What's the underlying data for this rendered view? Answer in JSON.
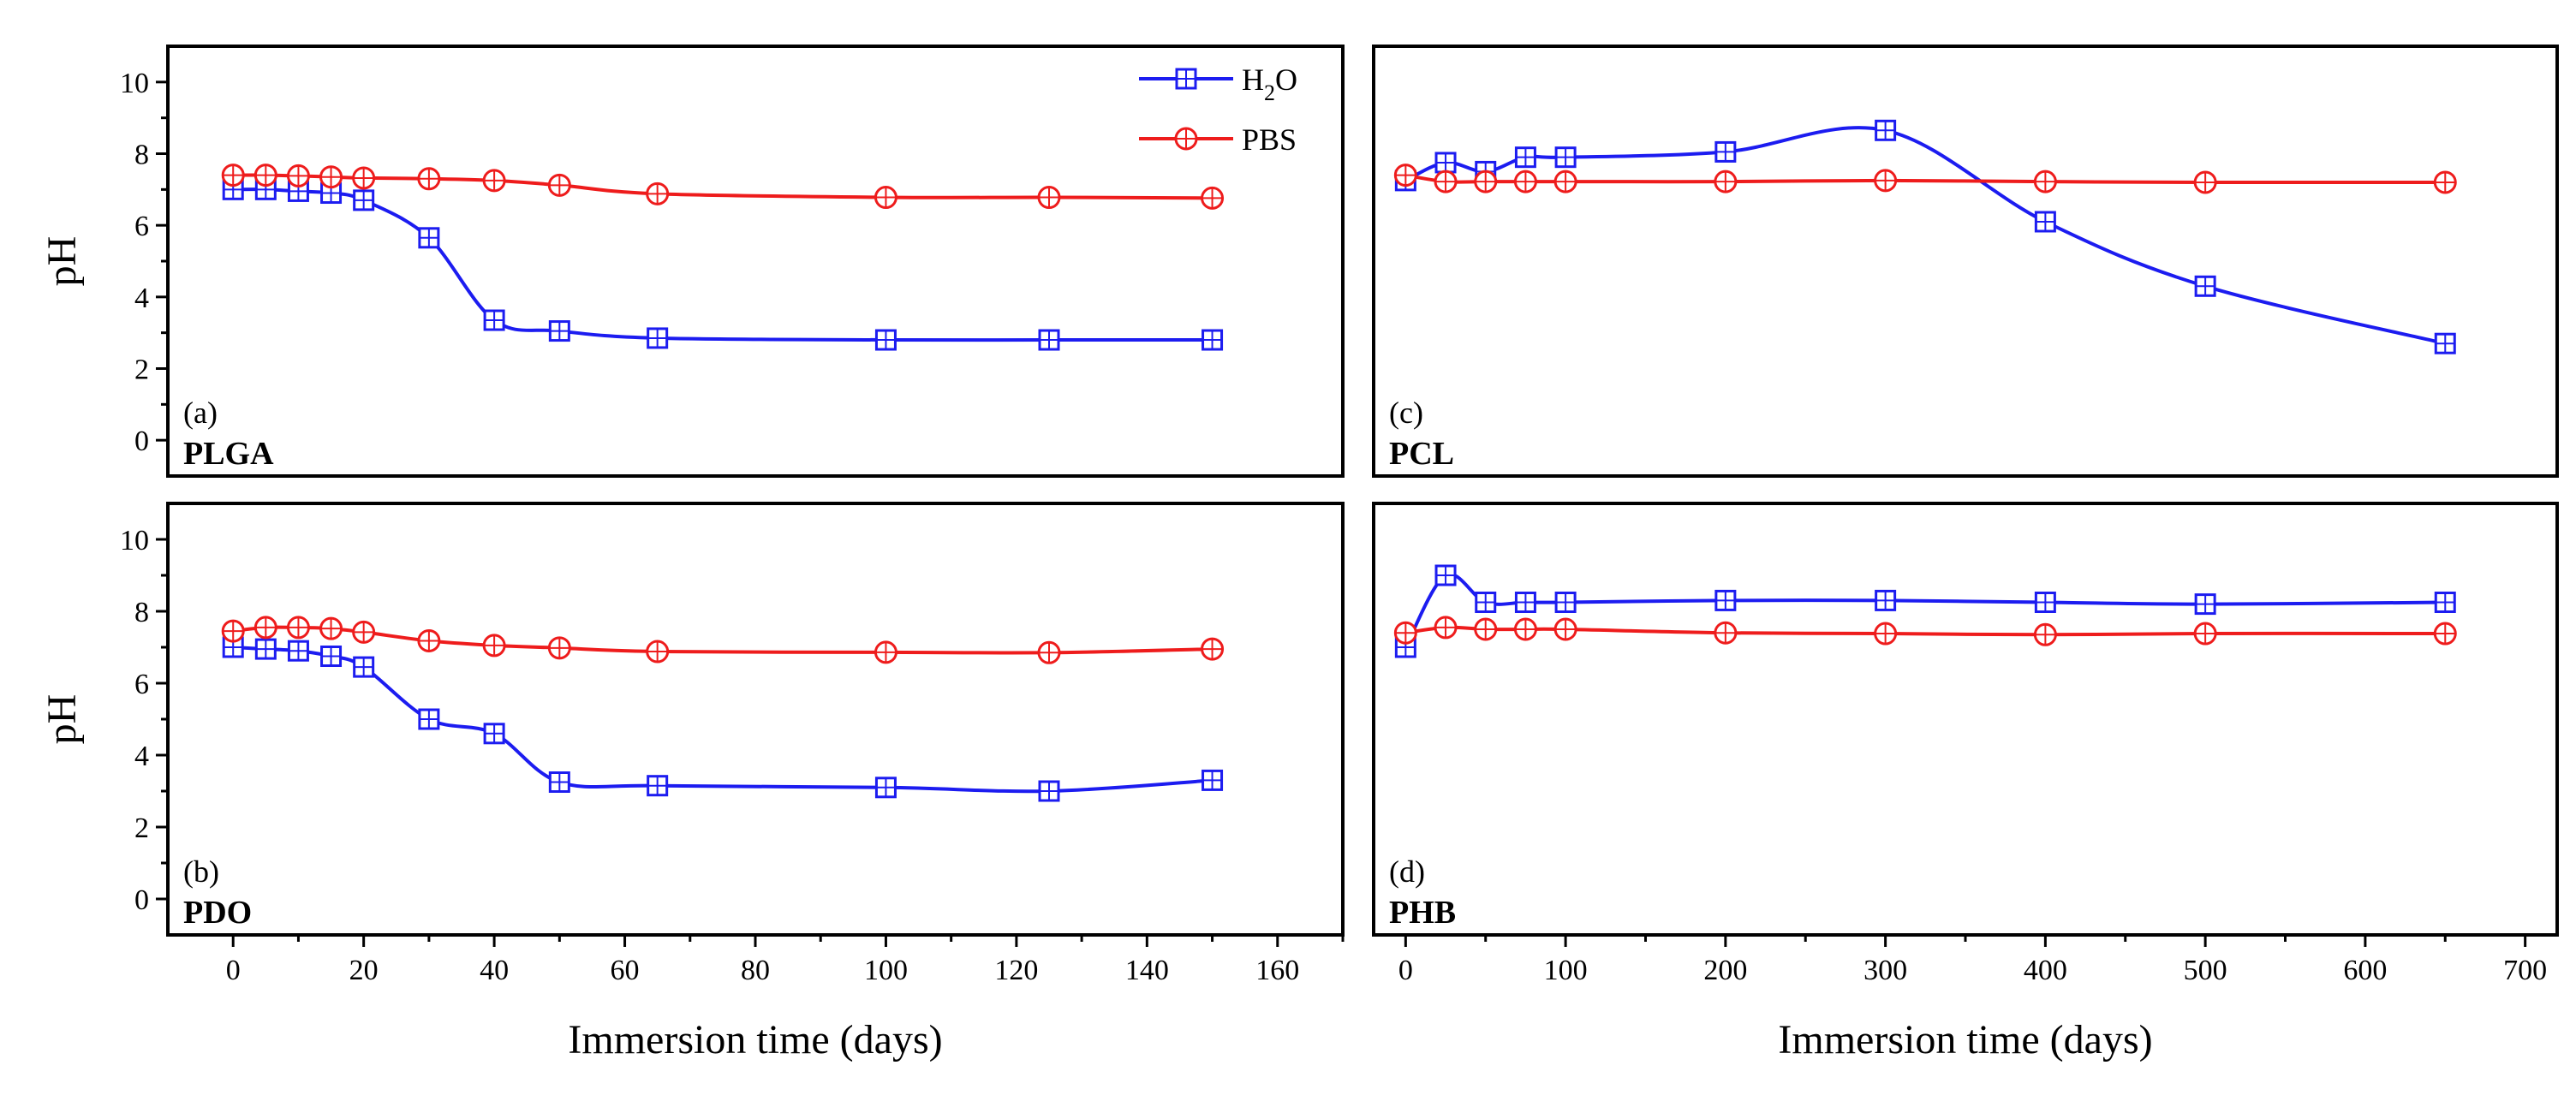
{
  "chart_data": [
    {
      "type": "line",
      "panel_label": "(a)",
      "material": "PLGA",
      "ylabel": "pH",
      "xlabel": "",
      "xlim": [
        -10,
        170
      ],
      "ylim": [
        -1,
        11
      ],
      "yticks": [
        "0",
        "2",
        "4",
        "6",
        "8",
        "10"
      ],
      "xticks": [],
      "legend": [
        {
          "name": "H2O",
          "main": "H",
          "sub": "2",
          "tail": "O",
          "marker": "square",
          "color": "#1c1cf0"
        },
        {
          "name": "PBS",
          "main": "PBS",
          "sub": "",
          "tail": "",
          "marker": "circle",
          "color": "#ee1c1c"
        }
      ],
      "series": [
        {
          "name": "H2O",
          "color": "#1c1cf0",
          "marker": "square",
          "x": [
            0,
            5,
            10,
            15,
            20,
            30,
            40,
            50,
            65,
            100,
            125,
            150
          ],
          "y": [
            7.0,
            7.0,
            6.95,
            6.9,
            6.7,
            5.65,
            3.35,
            3.05,
            2.85,
            2.8,
            2.8,
            2.8
          ]
        },
        {
          "name": "PBS",
          "color": "#ee1c1c",
          "marker": "circle",
          "x": [
            0,
            5,
            10,
            15,
            20,
            30,
            40,
            50,
            65,
            100,
            125,
            150
          ],
          "y": [
            7.4,
            7.4,
            7.38,
            7.35,
            7.32,
            7.3,
            7.25,
            7.12,
            6.88,
            6.78,
            6.78,
            6.76
          ]
        }
      ]
    },
    {
      "type": "line",
      "panel_label": "(b)",
      "material": "PDO",
      "ylabel": "pH",
      "xlabel": "Immersion time (days)",
      "xlim": [
        -10,
        170
      ],
      "ylim": [
        -1,
        11
      ],
      "yticks": [
        "0",
        "2",
        "4",
        "6",
        "8",
        "10"
      ],
      "xticks": [
        "0",
        "20",
        "40",
        "60",
        "80",
        "100",
        "120",
        "140",
        "160"
      ],
      "series": [
        {
          "name": "H2O",
          "color": "#1c1cf0",
          "marker": "square",
          "x": [
            0,
            5,
            10,
            15,
            20,
            30,
            40,
            50,
            65,
            100,
            125,
            150
          ],
          "y": [
            7.0,
            6.95,
            6.9,
            6.75,
            6.45,
            5.0,
            4.6,
            3.25,
            3.15,
            3.1,
            3.0,
            3.3
          ]
        },
        {
          "name": "PBS",
          "color": "#ee1c1c",
          "marker": "circle",
          "x": [
            0,
            5,
            10,
            15,
            20,
            30,
            40,
            50,
            65,
            100,
            125,
            150
          ],
          "y": [
            7.45,
            7.55,
            7.55,
            7.52,
            7.42,
            7.18,
            7.05,
            6.98,
            6.88,
            6.86,
            6.85,
            6.95
          ]
        }
      ]
    },
    {
      "type": "line",
      "panel_label": "(c)",
      "material": "PCL",
      "ylabel": "",
      "xlabel": "",
      "xlim": [
        -20,
        720
      ],
      "ylim": [
        -1,
        11
      ],
      "yticks": [],
      "xticks": [],
      "series": [
        {
          "name": "H2O",
          "color": "#1c1cf0",
          "marker": "square",
          "x": [
            0,
            25,
            50,
            75,
            100,
            200,
            300,
            400,
            500,
            650
          ],
          "y": [
            7.25,
            7.75,
            7.5,
            7.9,
            7.9,
            8.05,
            8.65,
            6.1,
            4.3,
            2.7
          ]
        },
        {
          "name": "PBS",
          "color": "#ee1c1c",
          "marker": "circle",
          "x": [
            0,
            25,
            50,
            75,
            100,
            200,
            300,
            400,
            500,
            650
          ],
          "y": [
            7.4,
            7.22,
            7.22,
            7.22,
            7.22,
            7.22,
            7.25,
            7.22,
            7.2,
            7.2
          ]
        }
      ]
    },
    {
      "type": "line",
      "panel_label": "(d)",
      "material": "PHB",
      "ylabel": "",
      "xlabel": "Immersion time (days)",
      "xlim": [
        -20,
        720
      ],
      "ylim": [
        -1,
        11
      ],
      "yticks": [],
      "xticks": [
        "0",
        "100",
        "200",
        "300",
        "400",
        "500",
        "600",
        "700"
      ],
      "series": [
        {
          "name": "H2O",
          "color": "#1c1cf0",
          "marker": "square",
          "x": [
            0,
            25,
            50,
            75,
            100,
            200,
            300,
            400,
            500,
            650
          ],
          "y": [
            7.0,
            9.0,
            8.25,
            8.25,
            8.25,
            8.3,
            8.3,
            8.25,
            8.2,
            8.25
          ]
        },
        {
          "name": "PBS",
          "color": "#ee1c1c",
          "marker": "circle",
          "x": [
            0,
            25,
            50,
            75,
            100,
            200,
            300,
            400,
            500,
            650
          ],
          "y": [
            7.4,
            7.55,
            7.5,
            7.5,
            7.5,
            7.4,
            7.38,
            7.35,
            7.38,
            7.38
          ]
        }
      ]
    }
  ]
}
